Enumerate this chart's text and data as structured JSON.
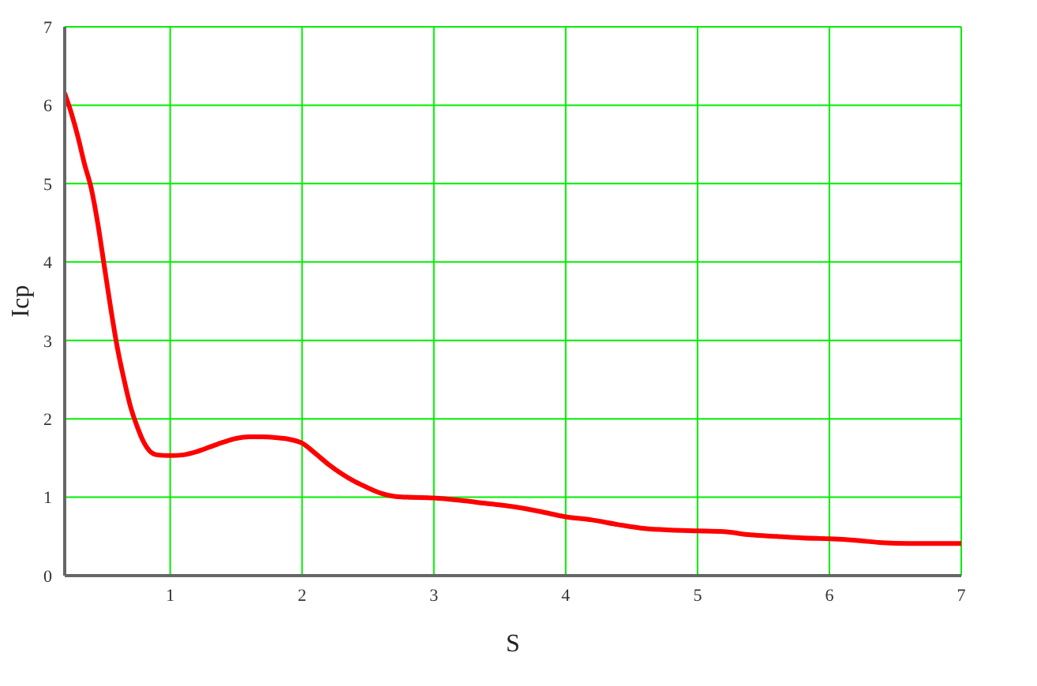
{
  "chart_data": {
    "type": "line",
    "xlabel": "S",
    "ylabel": "Icp",
    "x": [
      0.2,
      0.25,
      0.3,
      0.35,
      0.4,
      0.45,
      0.5,
      0.55,
      0.6,
      0.65,
      0.7,
      0.75,
      0.8,
      0.85,
      0.9,
      1.0,
      1.1,
      1.2,
      1.3,
      1.4,
      1.5,
      1.6,
      1.7,
      1.8,
      1.9,
      2.0,
      2.1,
      2.2,
      2.3,
      2.4,
      2.5,
      2.6,
      2.7,
      2.8,
      3.0,
      3.2,
      3.4,
      3.6,
      3.8,
      4.0,
      4.2,
      4.4,
      4.6,
      4.8,
      5.0,
      5.2,
      5.4,
      5.6,
      5.8,
      6.0,
      6.2,
      6.4,
      6.6,
      6.8,
      7.0
    ],
    "series": [
      {
        "color": "#ff0000",
        "values": [
          6.15,
          5.9,
          5.6,
          5.25,
          4.95,
          4.5,
          3.95,
          3.4,
          2.9,
          2.5,
          2.15,
          1.9,
          1.7,
          1.58,
          1.54,
          1.53,
          1.54,
          1.58,
          1.64,
          1.7,
          1.75,
          1.77,
          1.77,
          1.76,
          1.74,
          1.69,
          1.56,
          1.42,
          1.3,
          1.2,
          1.12,
          1.05,
          1.01,
          1.0,
          0.99,
          0.96,
          0.92,
          0.88,
          0.82,
          0.75,
          0.71,
          0.65,
          0.6,
          0.58,
          0.57,
          0.56,
          0.52,
          0.5,
          0.48,
          0.47,
          0.45,
          0.42,
          0.41,
          0.41,
          0.41
        ]
      }
    ],
    "xlim": [
      0.2,
      7
    ],
    "xticks": [
      1,
      2,
      3,
      4,
      5,
      6,
      7
    ],
    "ylim": [
      0,
      7
    ],
    "yticks": [
      0,
      1,
      2,
      3,
      4,
      5,
      6,
      7
    ],
    "grid": true,
    "marker": "none",
    "line_style": "solid"
  }
}
